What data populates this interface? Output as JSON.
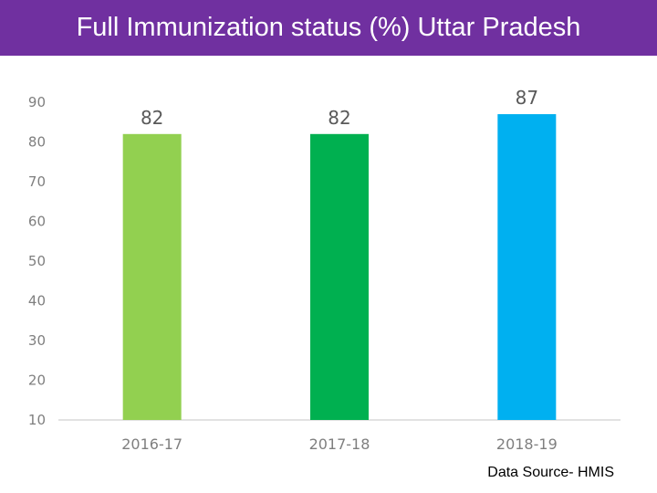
{
  "header": {
    "title": "Full Immunization status (%) Uttar Pradesh"
  },
  "footer": {
    "source": "Data Source- HMIS"
  },
  "chart_data": {
    "type": "bar",
    "title": "Full Immunization status (%) Uttar Pradesh",
    "categories": [
      "2016-17",
      "2017-18",
      "2018-19"
    ],
    "values": [
      82,
      82,
      87
    ],
    "colors": [
      "#92d050",
      "#00b050",
      "#00b0f0"
    ],
    "ylim": [
      10,
      90
    ],
    "yticks": [
      10,
      20,
      30,
      40,
      50,
      60,
      70,
      80,
      90
    ],
    "grid": false,
    "xlabel": "",
    "ylabel": ""
  }
}
